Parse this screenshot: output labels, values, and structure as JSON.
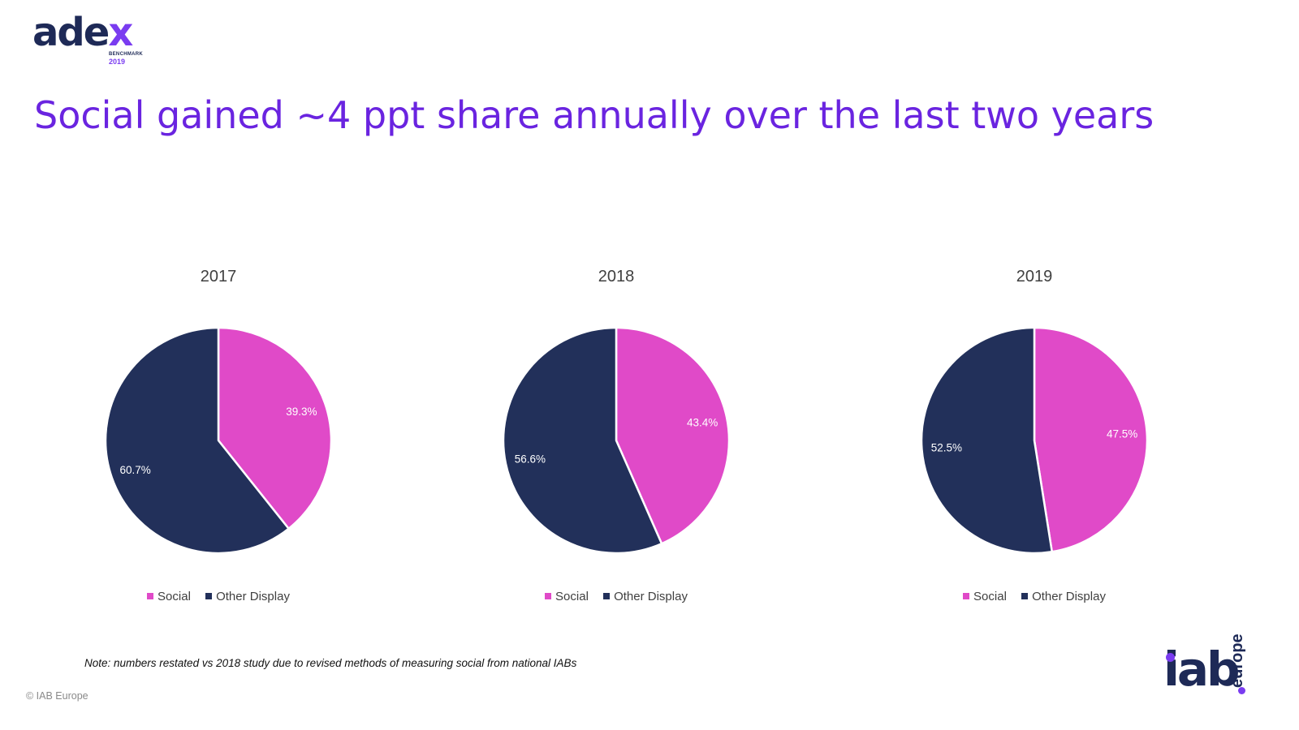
{
  "header": {
    "logo_text_main": "ade",
    "logo_text_x": "x",
    "logo_subtitle": "BENCHMARK",
    "logo_year": "2019",
    "title": "Social gained ~4 ppt share annually over the last two years"
  },
  "colors": {
    "social": "#e04ac8",
    "other_display": "#22305a",
    "title": "#6a24e0",
    "brand_navy": "#1e2a57",
    "brand_purple": "#7a3cf0"
  },
  "chart_data": [
    {
      "type": "pie",
      "title": "2017",
      "categories": [
        "Social",
        "Other Display"
      ],
      "values": [
        39.3,
        60.7
      ],
      "labels": [
        "39.3%",
        "60.7%"
      ],
      "legend": [
        "Social",
        "Other Display"
      ]
    },
    {
      "type": "pie",
      "title": "2018",
      "categories": [
        "Social",
        "Other Display"
      ],
      "values": [
        43.4,
        56.6
      ],
      "labels": [
        "43.4%",
        "56.6%"
      ],
      "legend": [
        "Social",
        "Other Display"
      ]
    },
    {
      "type": "pie",
      "title": "2019",
      "categories": [
        "Social",
        "Other Display"
      ],
      "values": [
        47.5,
        52.5
      ],
      "labels": [
        "47.5%",
        "52.5%"
      ],
      "legend": [
        "Social",
        "Other Display"
      ]
    }
  ],
  "footer": {
    "note": "Note: numbers restated vs 2018 study due to revised methods of measuring social from national IABs",
    "copyright": "© IAB Europe",
    "iab_logo_main": "iab",
    "iab_logo_side": "europe"
  }
}
